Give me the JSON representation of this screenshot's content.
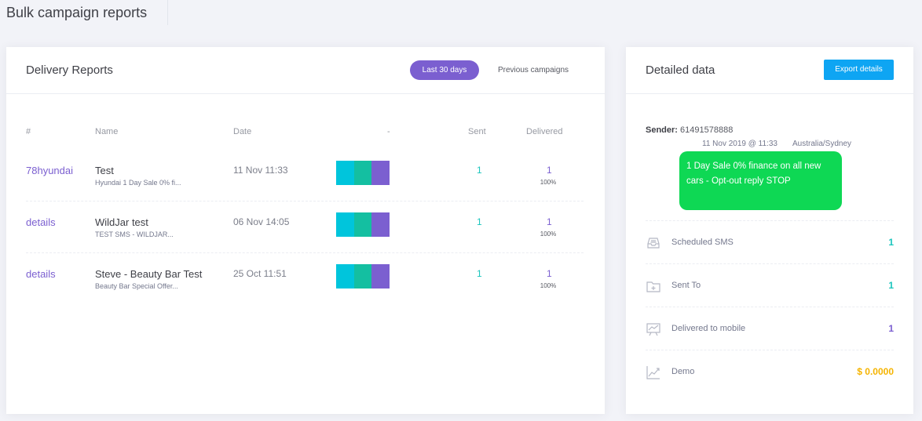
{
  "page": {
    "title": "Bulk campaign reports"
  },
  "delivery": {
    "title": "Delivery Reports",
    "tabs": {
      "active": "Last 30 days",
      "inactive": "Previous campaigns"
    },
    "columns": {
      "id": "#",
      "name": "Name",
      "date": "Date",
      "bar": "-",
      "sent": "Sent",
      "delivered": "Delivered"
    },
    "rows": [
      {
        "id": "78hyundai",
        "name": "Test",
        "sub": "Hyundai 1 Day Sale 0% fi...",
        "date": "11 Nov 11:33",
        "sent": "1",
        "delivered": "1",
        "pct": "100%"
      },
      {
        "id": "details",
        "name": "WildJar test",
        "sub": "TEST SMS - WILDJAR...",
        "date": "06 Nov 14:05",
        "sent": "1",
        "delivered": "1",
        "pct": "100%"
      },
      {
        "id": "details",
        "name": "Steve - Beauty Bar Test",
        "sub": "Beauty Bar Special Offer...",
        "date": "25 Oct 11:51",
        "sent": "1",
        "delivered": "1",
        "pct": "100%"
      }
    ],
    "bar_colors": [
      "#00c5dc",
      "#14bfa1",
      "#7b5fd0"
    ]
  },
  "detail": {
    "title": "Detailed data",
    "export_label": "Export details",
    "sender_label": "Sender:",
    "sender_value": "61491578888",
    "timestamp": "11 Nov 2019 @ 11:33",
    "timezone": "Australia/Sydney",
    "message": "1 Day Sale 0% finance on all new cars - Opt-out reply STOP",
    "stats": [
      {
        "icon": "inbox-icon",
        "label": "Scheduled SMS",
        "value": "1",
        "color": "#1bc5bd"
      },
      {
        "icon": "folder-plus-icon",
        "label": "Sent To",
        "value": "1",
        "color": "#1bc5bd"
      },
      {
        "icon": "chart-board-icon",
        "label": "Delivered to mobile",
        "value": "1",
        "color": "#7b5fd0"
      },
      {
        "icon": "line-chart-icon",
        "label": "Demo",
        "value": "$ 0.0000",
        "color": "#f5b400"
      }
    ]
  }
}
